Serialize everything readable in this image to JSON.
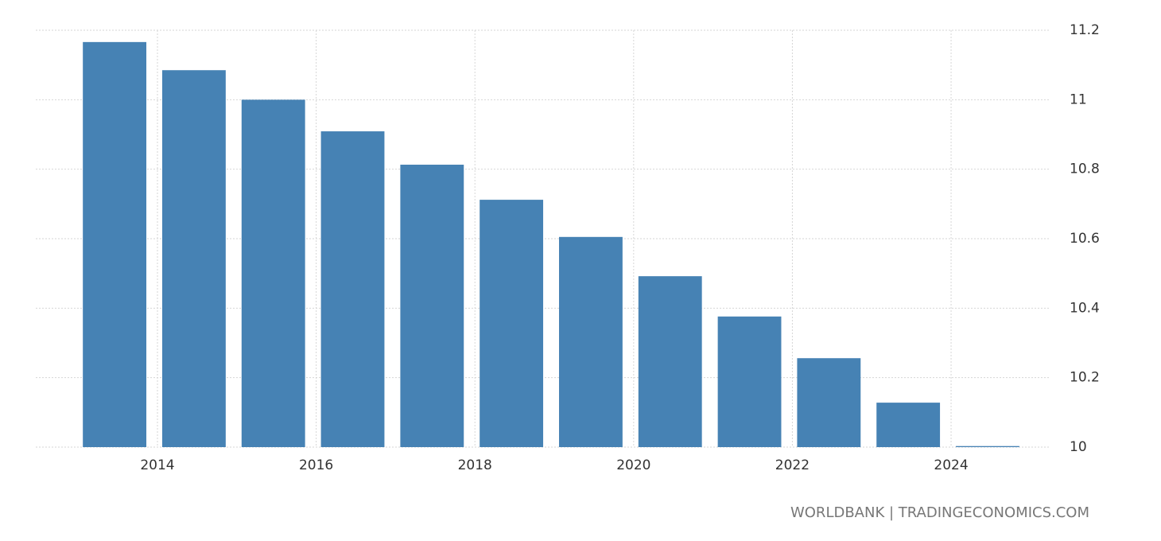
{
  "chart_data": {
    "type": "bar",
    "x": [
      2013,
      2014,
      2015,
      2016,
      2017,
      2018,
      2019,
      2020,
      2021,
      2022,
      2023,
      2024
    ],
    "values": [
      11.166,
      11.085,
      11.0,
      10.909,
      10.813,
      10.712,
      10.605,
      10.492,
      10.376,
      10.256,
      10.128,
      10.003
    ],
    "color": "#4682b4",
    "xlim": [
      2012.467,
      2025.242
    ],
    "xticks": [
      2014,
      2016,
      2018,
      2020,
      2022,
      2024
    ],
    "ylim": [
      10,
      11.2
    ],
    "yticks": [
      10,
      10.2,
      10.4,
      10.6,
      10.8,
      11,
      11.2
    ],
    "grid": true,
    "source": "WORLDBANK | TRADINGECONOMICS.COM"
  }
}
